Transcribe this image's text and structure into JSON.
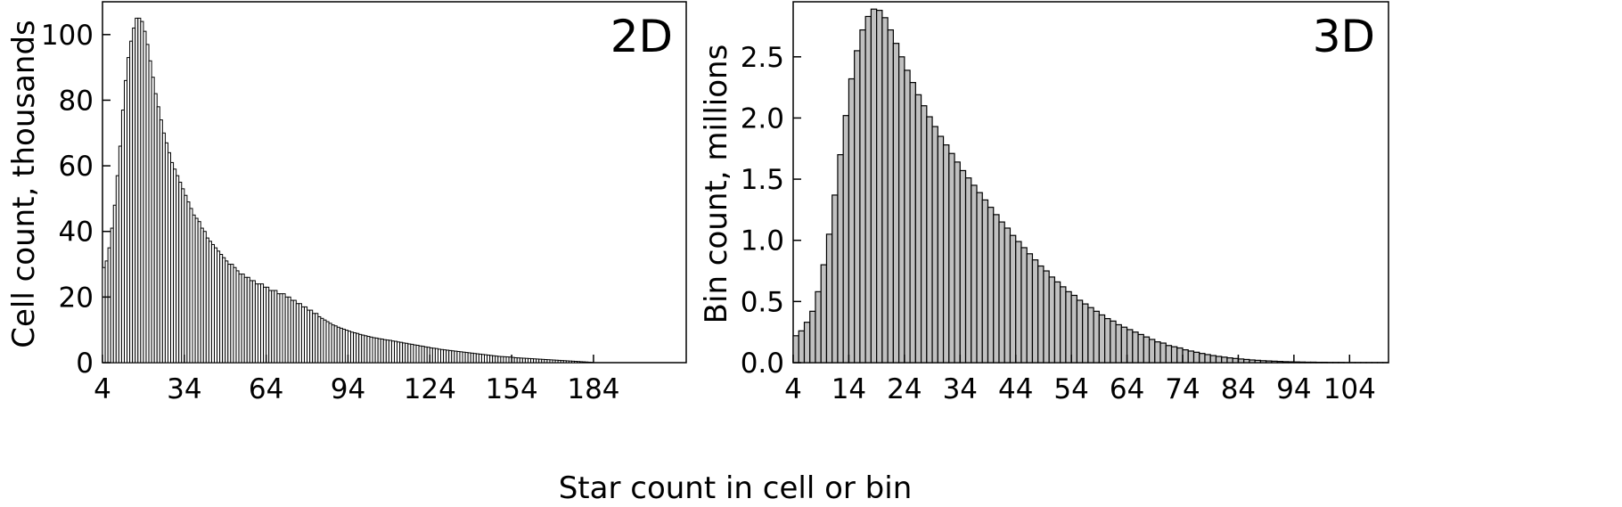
{
  "figure": {
    "shared_xlabel": "Star count in cell or bin"
  },
  "chart_data": [
    {
      "type": "bar",
      "panel_label": "2D",
      "ylabel": "Cell count, thousands",
      "xlabel": "",
      "xlim": [
        4,
        218
      ],
      "ylim": [
        0,
        110
      ],
      "xticks": [
        4,
        34,
        64,
        94,
        124,
        154,
        184
      ],
      "yticks": [
        0,
        20,
        40,
        60,
        80,
        100
      ],
      "bar_width": 1,
      "bar_fill": "#ffffff",
      "bar_stroke": "#000000",
      "x_start": 4,
      "values": [
        29,
        31,
        35,
        41,
        48,
        57,
        66,
        77,
        86,
        93,
        98,
        102,
        105,
        105,
        104,
        101,
        97,
        92,
        87,
        82,
        78,
        74,
        70,
        67,
        64,
        61,
        59,
        57,
        55,
        53,
        51,
        49,
        47,
        45,
        44,
        43,
        41,
        40,
        38,
        37,
        36,
        35,
        34,
        33,
        32,
        31,
        30,
        30,
        29,
        28,
        27,
        27,
        26,
        26,
        25,
        25,
        24,
        24,
        24,
        23,
        23,
        22,
        22,
        22,
        21,
        21,
        21,
        20,
        20,
        19,
        19,
        18,
        18,
        17,
        17,
        16,
        16,
        15,
        15,
        14,
        13.5,
        13,
        12.5,
        12,
        11.5,
        11.2,
        10.8,
        10.5,
        10.2,
        9.9,
        9.6,
        9.3,
        9.1,
        8.9,
        8.6,
        8.4,
        8.2,
        8.0,
        7.8,
        7.6,
        7.5,
        7.3,
        7.2,
        7.0,
        6.9,
        6.8,
        6.6,
        6.5,
        6.3,
        6.2,
        6.0,
        5.9,
        5.7,
        5.6,
        5.4,
        5.3,
        5.1,
        5.0,
        4.8,
        4.7,
        4.5,
        4.4,
        4.3,
        4.1,
        4.0,
        3.9,
        3.8,
        3.7,
        3.6,
        3.5,
        3.4,
        3.3,
        3.2,
        3.1,
        3.0,
        2.9,
        2.8,
        2.7,
        2.6,
        2.5,
        2.4,
        2.3,
        2.2,
        2.1,
        2.0,
        1.9,
        1.85,
        1.8,
        1.75,
        1.7,
        1.6,
        1.5,
        1.45,
        1.4,
        1.35,
        1.3,
        1.25,
        1.2,
        1.15,
        1.1,
        1.05,
        1.0,
        0.95,
        0.9,
        0.85,
        0.8,
        0.75,
        0.7,
        0.65,
        0.6,
        0.55,
        0.5,
        0.45,
        0.4,
        0.35,
        0.3,
        0.25,
        0.2,
        0.15,
        0.1
      ],
      "grid": false,
      "legend": "none"
    },
    {
      "type": "bar",
      "panel_label": "3D",
      "ylabel": "Bin count, millions",
      "xlabel": "",
      "xlim": [
        4,
        111
      ],
      "ylim": [
        0,
        2.95
      ],
      "xticks": [
        4,
        14,
        24,
        34,
        44,
        54,
        64,
        74,
        84,
        94,
        104
      ],
      "xtick_labels": [
        "4",
        "14",
        "24",
        "34",
        "44",
        "54",
        "64",
        "74",
        "84",
        "94",
        "104"
      ],
      "yticks": [
        0.0,
        0.5,
        1.0,
        1.5,
        2.0,
        2.5
      ],
      "ytick_labels": [
        "0.0",
        "0.5",
        "1.0",
        "1.5",
        "2.0",
        "2.5"
      ],
      "bar_width": 1,
      "bar_fill": "#c0c0c0",
      "bar_stroke": "#000000",
      "x_start": 4,
      "values": [
        0.22,
        0.26,
        0.33,
        0.42,
        0.58,
        0.8,
        1.05,
        1.37,
        1.7,
        2.02,
        2.32,
        2.55,
        2.72,
        2.83,
        2.89,
        2.88,
        2.82,
        2.72,
        2.61,
        2.5,
        2.39,
        2.29,
        2.19,
        2.1,
        2.01,
        1.93,
        1.85,
        1.78,
        1.71,
        1.64,
        1.57,
        1.51,
        1.45,
        1.39,
        1.33,
        1.27,
        1.21,
        1.15,
        1.1,
        1.04,
        0.99,
        0.94,
        0.89,
        0.84,
        0.79,
        0.75,
        0.7,
        0.66,
        0.62,
        0.58,
        0.55,
        0.51,
        0.48,
        0.45,
        0.42,
        0.39,
        0.36,
        0.34,
        0.31,
        0.29,
        0.27,
        0.25,
        0.23,
        0.21,
        0.19,
        0.17,
        0.16,
        0.14,
        0.13,
        0.12,
        0.105,
        0.095,
        0.085,
        0.075,
        0.066,
        0.058,
        0.051,
        0.045,
        0.039,
        0.034,
        0.03,
        0.026,
        0.022,
        0.019,
        0.016,
        0.014,
        0.012,
        0.01,
        0.008,
        0.007,
        0.006,
        0.005,
        0.004,
        0.004,
        0.003,
        0.003,
        0.002,
        0.002,
        0.002,
        0.001,
        0.001,
        0.001,
        0.001,
        0.001,
        0.001,
        0.001,
        0.001
      ],
      "grid": false,
      "legend": "none"
    }
  ]
}
